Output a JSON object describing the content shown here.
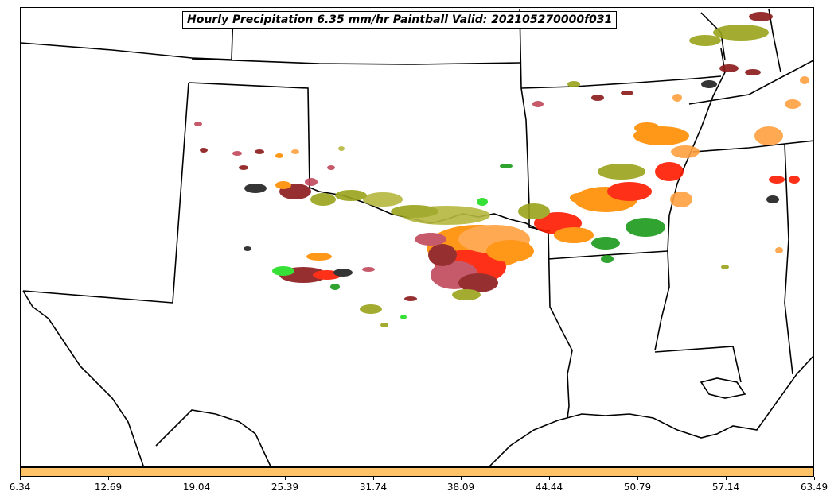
{
  "title": "Hourly Precipitation 6.35 mm/hr Paintball Valid: 202105270000f031",
  "colorbar": {
    "color": "#ffc266",
    "ticks": [
      "6.34",
      "12.69",
      "19.04",
      "25.39",
      "31.74",
      "38.09",
      "44.44",
      "50.79",
      "57.14",
      "63.49"
    ]
  },
  "palette": {
    "orange": "#ff8c00",
    "light_orange": "#ffa040",
    "red": "#ff1a00",
    "dark_red": "#8b1a1a",
    "rose": "#c0485a",
    "olive": "#9aa41a",
    "olive_light": "#b5b840",
    "green": "#1a9a1a",
    "bright_green": "#22dd22",
    "black": "#202020"
  }
}
